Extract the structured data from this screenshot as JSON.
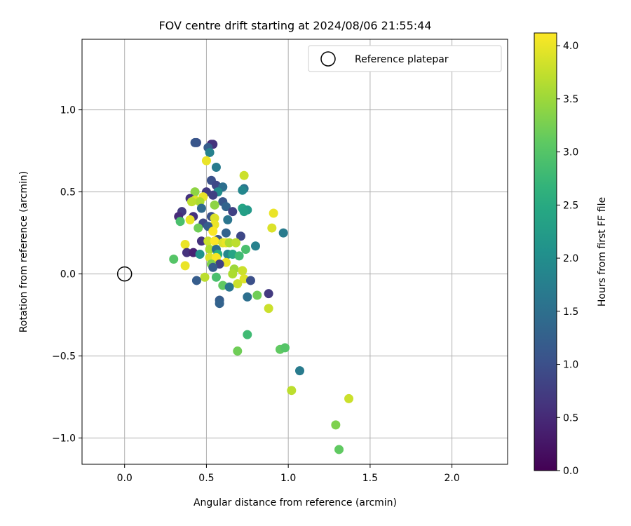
{
  "chart_data": {
    "type": "scatter",
    "title": "FOV centre drift starting at 2024/08/06 21:55:44",
    "xlabel": "Angular distance from reference (arcmin)",
    "ylabel": "Rotation from reference (arcmin)",
    "xlim": [
      -0.26,
      2.34
    ],
    "ylim": [
      -1.16,
      1.43
    ],
    "xticks": [
      0.0,
      0.5,
      1.0,
      1.5,
      2.0
    ],
    "xtick_labels": [
      "0.0",
      "0.5",
      "1.0",
      "1.5",
      "2.0"
    ],
    "yticks": [
      -1.0,
      -0.5,
      0.0,
      0.5,
      1.0
    ],
    "ytick_labels": [
      "−1.0",
      "−0.5",
      "0.0",
      "0.5",
      "1.0"
    ],
    "grid": true,
    "legend": {
      "placement": "top-right",
      "entries": [
        "Reference platepar"
      ]
    },
    "reference_point": {
      "x": 0.0,
      "y": 0.0
    },
    "colorbar": {
      "label": "Hours from first FF file",
      "colormap": "viridis",
      "range": [
        0.0,
        4.12
      ],
      "ticks": [
        0.0,
        0.5,
        1.0,
        1.5,
        2.0,
        2.5,
        3.0,
        3.5,
        4.0
      ],
      "tick_labels": [
        "0.0",
        "0.5",
        "1.0",
        "1.5",
        "2.0",
        "2.5",
        "3.0",
        "3.5",
        "4.0"
      ]
    },
    "points": [
      {
        "x": 0.44,
        "y": 0.8,
        "t": 1.0
      },
      {
        "x": 0.43,
        "y": 0.8,
        "t": 1.1
      },
      {
        "x": 0.53,
        "y": 0.79,
        "t": 0.5
      },
      {
        "x": 0.54,
        "y": 0.79,
        "t": 0.6
      },
      {
        "x": 0.51,
        "y": 0.77,
        "t": 1.2
      },
      {
        "x": 0.52,
        "y": 0.74,
        "t": 1.8
      },
      {
        "x": 0.5,
        "y": 0.69,
        "t": 4.0
      },
      {
        "x": 0.56,
        "y": 0.65,
        "t": 1.7
      },
      {
        "x": 0.73,
        "y": 0.6,
        "t": 3.8
      },
      {
        "x": 0.53,
        "y": 0.57,
        "t": 1.0
      },
      {
        "x": 0.56,
        "y": 0.54,
        "t": 0.9
      },
      {
        "x": 0.6,
        "y": 0.53,
        "t": 1.5
      },
      {
        "x": 0.73,
        "y": 0.52,
        "t": 1.6
      },
      {
        "x": 0.72,
        "y": 0.51,
        "t": 1.9
      },
      {
        "x": 0.5,
        "y": 0.5,
        "t": 0.7
      },
      {
        "x": 0.43,
        "y": 0.5,
        "t": 3.4
      },
      {
        "x": 0.57,
        "y": 0.5,
        "t": 2.0
      },
      {
        "x": 0.54,
        "y": 0.48,
        "t": 0.8
      },
      {
        "x": 0.48,
        "y": 0.47,
        "t": 4.0
      },
      {
        "x": 0.4,
        "y": 0.46,
        "t": 0.6
      },
      {
        "x": 0.43,
        "y": 0.45,
        "t": 3.9
      },
      {
        "x": 0.46,
        "y": 0.44,
        "t": 3.6
      },
      {
        "x": 0.41,
        "y": 0.44,
        "t": 3.7
      },
      {
        "x": 0.6,
        "y": 0.44,
        "t": 1.1
      },
      {
        "x": 0.55,
        "y": 0.42,
        "t": 3.4
      },
      {
        "x": 0.62,
        "y": 0.41,
        "t": 1.3
      },
      {
        "x": 0.72,
        "y": 0.4,
        "t": 2.4
      },
      {
        "x": 0.47,
        "y": 0.4,
        "t": 1.4
      },
      {
        "x": 0.66,
        "y": 0.38,
        "t": 0.8
      },
      {
        "x": 0.75,
        "y": 0.39,
        "t": 2.2
      },
      {
        "x": 0.73,
        "y": 0.38,
        "t": 2.3
      },
      {
        "x": 0.91,
        "y": 0.37,
        "t": 4.0
      },
      {
        "x": 0.35,
        "y": 0.38,
        "t": 0.7
      },
      {
        "x": 0.33,
        "y": 0.35,
        "t": 0.5
      },
      {
        "x": 0.42,
        "y": 0.35,
        "t": 0.6
      },
      {
        "x": 0.53,
        "y": 0.35,
        "t": 1.0
      },
      {
        "x": 0.55,
        "y": 0.34,
        "t": 3.9
      },
      {
        "x": 0.63,
        "y": 0.33,
        "t": 1.6
      },
      {
        "x": 0.34,
        "y": 0.32,
        "t": 2.9
      },
      {
        "x": 0.4,
        "y": 0.33,
        "t": 4.0
      },
      {
        "x": 0.48,
        "y": 0.31,
        "t": 0.9
      },
      {
        "x": 0.55,
        "y": 0.3,
        "t": 4.0
      },
      {
        "x": 0.51,
        "y": 0.29,
        "t": 1.2
      },
      {
        "x": 0.45,
        "y": 0.28,
        "t": 3.2
      },
      {
        "x": 0.54,
        "y": 0.26,
        "t": 4.1
      },
      {
        "x": 0.62,
        "y": 0.25,
        "t": 1.3
      },
      {
        "x": 0.9,
        "y": 0.28,
        "t": 3.9
      },
      {
        "x": 0.97,
        "y": 0.25,
        "t": 1.7
      },
      {
        "x": 0.71,
        "y": 0.23,
        "t": 0.9
      },
      {
        "x": 0.57,
        "y": 0.21,
        "t": 1.1
      },
      {
        "x": 0.47,
        "y": 0.2,
        "t": 0.6
      },
      {
        "x": 0.51,
        "y": 0.2,
        "t": 3.8
      },
      {
        "x": 0.55,
        "y": 0.2,
        "t": 4.1
      },
      {
        "x": 0.6,
        "y": 0.19,
        "t": 3.9
      },
      {
        "x": 0.62,
        "y": 0.19,
        "t": 4.0
      },
      {
        "x": 0.64,
        "y": 0.19,
        "t": 3.6
      },
      {
        "x": 0.68,
        "y": 0.19,
        "t": 3.7
      },
      {
        "x": 0.37,
        "y": 0.18,
        "t": 4.0
      },
      {
        "x": 0.8,
        "y": 0.17,
        "t": 1.8
      },
      {
        "x": 0.74,
        "y": 0.15,
        "t": 2.9
      },
      {
        "x": 0.52,
        "y": 0.15,
        "t": 3.6
      },
      {
        "x": 0.56,
        "y": 0.15,
        "t": 1.5
      },
      {
        "x": 0.38,
        "y": 0.13,
        "t": 0.6
      },
      {
        "x": 0.42,
        "y": 0.13,
        "t": 0.4
      },
      {
        "x": 0.46,
        "y": 0.12,
        "t": 2.1
      },
      {
        "x": 0.57,
        "y": 0.12,
        "t": 2.6
      },
      {
        "x": 0.63,
        "y": 0.12,
        "t": 1.9
      },
      {
        "x": 0.66,
        "y": 0.12,
        "t": 2.4
      },
      {
        "x": 0.52,
        "y": 0.1,
        "t": 3.9
      },
      {
        "x": 0.56,
        "y": 0.1,
        "t": 4.1
      },
      {
        "x": 0.7,
        "y": 0.11,
        "t": 2.8
      },
      {
        "x": 0.3,
        "y": 0.09,
        "t": 3.0
      },
      {
        "x": 0.62,
        "y": 0.07,
        "t": 4.0
      },
      {
        "x": 0.58,
        "y": 0.06,
        "t": 0.8
      },
      {
        "x": 0.53,
        "y": 0.06,
        "t": 3.3
      },
      {
        "x": 0.37,
        "y": 0.05,
        "t": 4.0
      },
      {
        "x": 0.54,
        "y": 0.04,
        "t": 1.2
      },
      {
        "x": 0.67,
        "y": 0.03,
        "t": 3.5
      },
      {
        "x": 0.72,
        "y": 0.02,
        "t": 3.8
      },
      {
        "x": 0.66,
        "y": 0.0,
        "t": 3.6
      },
      {
        "x": 0.49,
        "y": -0.02,
        "t": 3.7
      },
      {
        "x": 0.56,
        "y": -0.02,
        "t": 2.9
      },
      {
        "x": 0.73,
        "y": -0.03,
        "t": 3.9
      },
      {
        "x": 0.44,
        "y": -0.04,
        "t": 1.2
      },
      {
        "x": 0.77,
        "y": -0.04,
        "t": 1.0
      },
      {
        "x": 0.69,
        "y": -0.06,
        "t": 3.8
      },
      {
        "x": 0.6,
        "y": -0.07,
        "t": 3.1
      },
      {
        "x": 0.64,
        "y": -0.08,
        "t": 1.6
      },
      {
        "x": 0.88,
        "y": -0.12,
        "t": 0.7
      },
      {
        "x": 0.81,
        "y": -0.13,
        "t": 3.2
      },
      {
        "x": 0.75,
        "y": -0.14,
        "t": 1.5
      },
      {
        "x": 0.58,
        "y": -0.16,
        "t": 1.2
      },
      {
        "x": 0.58,
        "y": -0.18,
        "t": 1.3
      },
      {
        "x": 0.88,
        "y": -0.21,
        "t": 3.8
      },
      {
        "x": 0.75,
        "y": -0.37,
        "t": 2.8
      },
      {
        "x": 0.69,
        "y": -0.47,
        "t": 3.2
      },
      {
        "x": 0.95,
        "y": -0.46,
        "t": 3.1
      },
      {
        "x": 0.98,
        "y": -0.45,
        "t": 3.0
      },
      {
        "x": 1.07,
        "y": -0.59,
        "t": 1.7
      },
      {
        "x": 1.02,
        "y": -0.71,
        "t": 3.7
      },
      {
        "x": 1.37,
        "y": -0.76,
        "t": 3.8
      },
      {
        "x": 1.29,
        "y": -0.92,
        "t": 3.3
      },
      {
        "x": 1.31,
        "y": -1.07,
        "t": 3.1
      }
    ]
  }
}
